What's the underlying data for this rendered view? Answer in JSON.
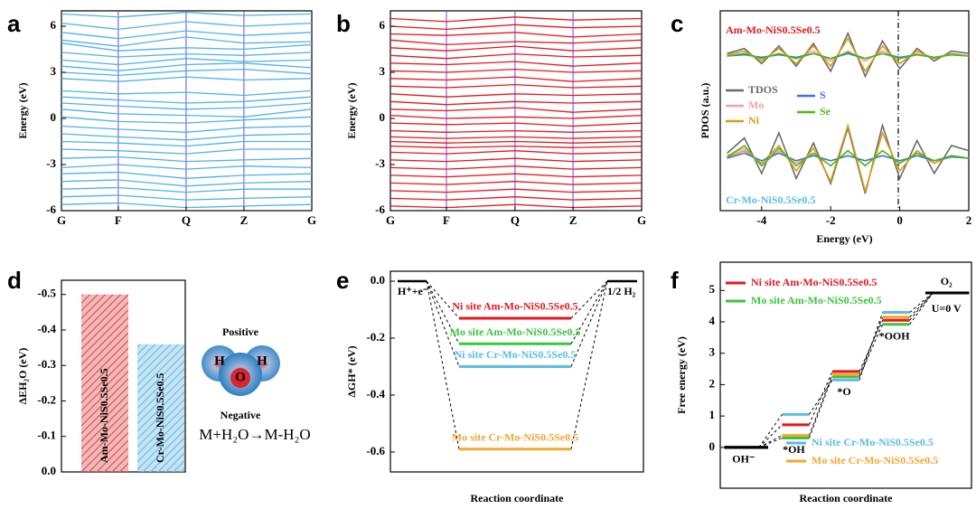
{
  "chart_data": [
    {
      "type": "line",
      "panel": "a",
      "ylabel": "Energy (eV)",
      "color": "#4db3e6",
      "x": [
        0,
        0.227,
        0.498,
        0.729,
        1
      ],
      "xlim": [
        0,
        1
      ],
      "xticks": [
        {
          "value": 0,
          "label": "G"
        },
        {
          "value": 0.227,
          "label": "F"
        },
        {
          "value": 0.498,
          "label": "Q"
        },
        {
          "value": 0.729,
          "label": "Z"
        },
        {
          "value": 1,
          "label": "G"
        }
      ],
      "ylim": [
        -6,
        7
      ],
      "yticks": [
        -6,
        -3,
        0,
        3,
        6
      ],
      "series": [
        {
          "values": [
            6.8,
            6.6,
            6.9,
            6.7,
            6.8
          ]
        },
        {
          "values": [
            6.2,
            5.8,
            6.3,
            6.0,
            6.2
          ]
        },
        {
          "values": [
            5.6,
            5.2,
            5.7,
            5.4,
            5.6
          ]
        },
        {
          "values": [
            5.1,
            4.7,
            5.3,
            4.9,
            5.0
          ]
        },
        {
          "values": [
            4.9,
            4.4,
            4.6,
            4.5,
            4.8
          ]
        },
        {
          "values": [
            4.3,
            4.0,
            4.2,
            4.1,
            4.3
          ]
        },
        {
          "values": [
            3.8,
            3.5,
            3.9,
            3.7,
            3.8
          ]
        },
        {
          "values": [
            3.4,
            3.1,
            3.5,
            3.6,
            3.3
          ]
        },
        {
          "values": [
            3.0,
            2.8,
            3.1,
            3.2,
            2.9
          ]
        },
        {
          "values": [
            2.6,
            2.4,
            2.7,
            2.5,
            2.6
          ]
        },
        {
          "values": [
            1.8,
            1.6,
            1.7,
            1.5,
            1.8
          ]
        },
        {
          "values": [
            1.4,
            1.2,
            1.0,
            1.1,
            1.4
          ]
        },
        {
          "values": [
            1.0,
            0.8,
            0.6,
            0.7,
            1.0
          ]
        },
        {
          "values": [
            0.6,
            0.3,
            0.2,
            0.1,
            0.6
          ]
        },
        {
          "values": [
            0.1,
            -0.2,
            -0.3,
            -0.1,
            0.1
          ]
        },
        {
          "values": [
            -0.5,
            -0.7,
            -0.9,
            -0.6,
            -0.5
          ]
        },
        {
          "values": [
            -1.0,
            -1.2,
            -1.4,
            -1.1,
            -1.0
          ]
        },
        {
          "values": [
            -1.5,
            -1.6,
            -1.8,
            -1.5,
            -1.5
          ]
        },
        {
          "values": [
            -2.0,
            -2.1,
            -2.3,
            -2.0,
            -2.0
          ]
        },
        {
          "values": [
            -2.6,
            -2.5,
            -2.8,
            -2.7,
            -2.6
          ]
        },
        {
          "values": [
            -3.2,
            -3.0,
            -3.3,
            -3.1,
            -3.2
          ]
        },
        {
          "values": [
            -3.6,
            -3.5,
            -3.9,
            -3.7,
            -3.6
          ]
        },
        {
          "values": [
            -4.1,
            -4.0,
            -4.4,
            -4.2,
            -4.1
          ]
        },
        {
          "values": [
            -4.6,
            -4.5,
            -4.8,
            -4.6,
            -4.6
          ]
        },
        {
          "values": [
            -5.1,
            -5.0,
            -5.3,
            -5.2,
            -5.1
          ]
        },
        {
          "values": [
            -5.6,
            -5.5,
            -5.8,
            -5.7,
            -5.6
          ]
        }
      ]
    },
    {
      "type": "line",
      "panel": "b",
      "ylabel": "Energy (eV)",
      "color": "#e0191f",
      "x": [
        0,
        0.223,
        0.496,
        0.727,
        1
      ],
      "xlim": [
        0,
        1
      ],
      "xticks": [
        {
          "value": 0,
          "label": "G"
        },
        {
          "value": 0.223,
          "label": "F"
        },
        {
          "value": 0.496,
          "label": "Q"
        },
        {
          "value": 0.727,
          "label": "Z"
        },
        {
          "value": 1,
          "label": "G"
        }
      ],
      "ylim": [
        -6,
        7
      ],
      "yticks": [
        -6,
        -3,
        0,
        3,
        6
      ],
      "series": [
        {
          "values": [
            6.5,
            6.3,
            6.6,
            6.4,
            6.5
          ]
        },
        {
          "values": [
            6.0,
            5.8,
            6.1,
            5.9,
            6.0
          ]
        },
        {
          "values": [
            5.5,
            5.4,
            5.6,
            5.3,
            5.5
          ]
        },
        {
          "values": [
            5.1,
            4.8,
            5.0,
            4.9,
            5.1
          ]
        },
        {
          "values": [
            4.6,
            4.4,
            4.7,
            4.4,
            4.6
          ]
        },
        {
          "values": [
            4.1,
            3.9,
            4.2,
            4.0,
            4.1
          ]
        },
        {
          "values": [
            3.6,
            3.5,
            3.7,
            3.4,
            3.6
          ]
        },
        {
          "values": [
            3.1,
            3.0,
            3.2,
            3.0,
            3.1
          ]
        },
        {
          "values": [
            2.6,
            2.5,
            2.7,
            2.4,
            2.6
          ]
        },
        {
          "values": [
            2.1,
            2.0,
            2.2,
            2.0,
            2.1
          ]
        },
        {
          "values": [
            1.6,
            1.4,
            1.6,
            1.5,
            1.6
          ]
        },
        {
          "values": [
            1.1,
            0.9,
            1.1,
            1.0,
            1.1
          ]
        },
        {
          "values": [
            0.6,
            0.5,
            0.7,
            0.4,
            0.6
          ]
        },
        {
          "values": [
            0.2,
            0.0,
            0.1,
            0.0,
            0.2
          ]
        },
        {
          "values": [
            -0.3,
            -0.4,
            -0.3,
            -0.5,
            -0.3
          ]
        },
        {
          "values": [
            -0.8,
            -0.9,
            -0.8,
            -0.9,
            -0.8
          ]
        },
        {
          "values": [
            -1.2,
            -1.3,
            -1.2,
            -1.3,
            -1.2
          ]
        },
        {
          "values": [
            -1.5,
            -1.6,
            -1.5,
            -1.6,
            -1.5
          ]
        },
        {
          "values": [
            -1.8,
            -1.9,
            -1.8,
            -1.9,
            -1.8
          ]
        },
        {
          "values": [
            -2.2,
            -2.3,
            -2.1,
            -2.3,
            -2.2
          ]
        },
        {
          "values": [
            -2.7,
            -2.8,
            -2.6,
            -2.8,
            -2.7
          ]
        },
        {
          "values": [
            -3.2,
            -3.3,
            -3.1,
            -3.3,
            -3.2
          ]
        },
        {
          "values": [
            -3.7,
            -3.8,
            -3.6,
            -3.8,
            -3.7
          ]
        },
        {
          "values": [
            -4.2,
            -4.3,
            -4.1,
            -4.3,
            -4.2
          ]
        },
        {
          "values": [
            -4.7,
            -4.8,
            -4.6,
            -4.8,
            -4.7
          ]
        },
        {
          "values": [
            -5.2,
            -5.3,
            -5.1,
            -5.3,
            -5.2
          ]
        },
        {
          "values": [
            -5.7,
            -5.8,
            -5.6,
            -5.8,
            -5.7
          ]
        }
      ]
    },
    {
      "type": "density",
      "panel": "c",
      "xlabel": "Energy (eV)",
      "ylabel": "PDOS (a.u.)",
      "x": [
        -5,
        -4.5,
        -4,
        -3.5,
        -3,
        -2.5,
        -2,
        -1.5,
        -1,
        -0.5,
        0,
        0.5,
        1,
        1.5,
        2
      ],
      "xlim": [
        -5.2,
        2
      ],
      "xticks": [
        -4,
        -2,
        0,
        2
      ],
      "ylim": [
        -1.5,
        1.5
      ],
      "legend": [
        {
          "name": "TDOS",
          "color": "#6b6b6b"
        },
        {
          "name": "Mo",
          "color": "#f4a0a0"
        },
        {
          "name": "Ni",
          "color": "#d4a017"
        },
        {
          "name": "S",
          "color": "#4a6fd8"
        },
        {
          "name": "Se",
          "color": "#4cbb17"
        }
      ],
      "subplots": [
        {
          "label": "Am-Mo-NiS0.5Se0.5",
          "color": "#e0191f",
          "series": [
            {
              "values": [
                0.1,
                0.3,
                -0.3,
                0.4,
                -0.4,
                0.5,
                -0.6,
                0.9,
                -0.8,
                0.6,
                -0.5,
                0.3,
                -0.2,
                0.2,
                0.1
              ]
            },
            {
              "values": [
                0,
                0.1,
                -0.1,
                0.1,
                -0.1,
                0.2,
                -0.2,
                0.2,
                -0.2,
                0.2,
                -0.1,
                0.1,
                -0.1,
                0.1,
                0
              ]
            },
            {
              "values": [
                0.05,
                0.2,
                -0.2,
                0.3,
                -0.3,
                0.4,
                -0.4,
                0.7,
                -0.6,
                0.4,
                -0.3,
                0.2,
                -0.1,
                0.1,
                0
              ]
            },
            {
              "values": [
                0,
                0.05,
                -0.05,
                0.05,
                -0.05,
                0.1,
                -0.1,
                0.1,
                -0.1,
                0.1,
                -0.05,
                0.05,
                -0.05,
                0.05,
                0
              ]
            },
            {
              "values": [
                0,
                0.1,
                -0.1,
                0.1,
                -0.1,
                0.1,
                -0.1,
                0.15,
                -0.1,
                0.1,
                -0.1,
                0.05,
                -0.05,
                0.05,
                0
              ]
            }
          ]
        },
        {
          "label": "Cr-Mo-NiS0.5Se0.5",
          "color": "#5bbce4",
          "series": [
            {
              "values": [
                0.2,
                0.8,
                -0.6,
                1.0,
                -0.8,
                0.6,
                -1.0,
                1.2,
                -1.4,
                1.3,
                -0.8,
                0.7,
                -0.6,
                0.5,
                0.3
              ]
            },
            {
              "values": [
                0.1,
                0.4,
                -0.3,
                0.3,
                -0.2,
                0.2,
                -0.3,
                0.3,
                -0.3,
                0.3,
                -0.2,
                0.2,
                -0.2,
                0.1,
                0
              ]
            },
            {
              "values": [
                0.05,
                0.3,
                -0.2,
                0.5,
                -0.5,
                0.4,
                -0.9,
                1.3,
                -1.3,
                1.0,
                -0.5,
                0.3,
                -0.2,
                0.1,
                0
              ]
            },
            {
              "values": [
                0,
                0.2,
                -0.1,
                0.2,
                -0.1,
                0.1,
                -0.1,
                0.1,
                -0.1,
                0.1,
                -0.1,
                0.1,
                -0.1,
                0.05,
                0
              ]
            },
            {
              "values": [
                0.05,
                0.5,
                -0.3,
                0.4,
                -0.3,
                0.2,
                -0.3,
                0.3,
                -0.3,
                0.3,
                -0.2,
                0.2,
                -0.1,
                0.1,
                0
              ]
            }
          ]
        }
      ]
    },
    {
      "type": "bar",
      "panel": "d",
      "ylabel": "ΔEH₂O (eV)",
      "categories": [
        "Am-Mo-NiS0.5Se0.5",
        "Cr-Mo-NiS0.5Se0.5"
      ],
      "values": [
        -0.5,
        -0.36
      ],
      "colors": [
        "#e06666",
        "#7ec3e6"
      ],
      "ylim": [
        0,
        -0.54
      ],
      "yticks": [
        {
          "value": 0,
          "label": "0.0"
        },
        -0.1,
        -0.2,
        -0.3,
        -0.4,
        -0.5
      ],
      "annotations": {
        "positive": "Positive",
        "negative": "Negative",
        "h1": "H",
        "o": "O",
        "h2": "H",
        "reaction": "M+H₂O→M-H₂O"
      }
    },
    {
      "type": "energy-level",
      "panel": "e",
      "ylabel": "ΔGH* (eV)",
      "xlabel": "Reaction coordinate",
      "start": {
        "label": "H⁺+e⁻",
        "value": 0
      },
      "end": {
        "label": "1/2 H₂",
        "value": 0
      },
      "ylim": [
        -0.67,
        0.035
      ],
      "yticks": [
        {
          "value": 0,
          "label": "0.0"
        },
        -0.2,
        -0.4,
        -0.6
      ],
      "series": [
        {
          "name": "Ni site Am-Mo-NiS0.5Se0.5",
          "color": "#e0191f",
          "value": -0.13
        },
        {
          "name": "Mo site Am-Mo-NiS0.5Se0.5",
          "color": "#3cc43c",
          "value": -0.22
        },
        {
          "name": "Ni site Cr-Mo-NiS0.5Se0.5",
          "color": "#5bbce4",
          "value": -0.3
        },
        {
          "name": "Mo site Cr-Mo-NiS0.5Se0.5",
          "color": "#f0a830",
          "value": -0.59
        }
      ]
    },
    {
      "type": "free-energy",
      "panel": "f",
      "ylabel": "Free energy (eV)",
      "xlabel": "Reaction coordinate",
      "categories": [
        "OH⁻",
        "*OH",
        "*O",
        "*OOH",
        "O₂"
      ],
      "annotation": "U=0 V",
      "ylim": [
        -1.3,
        5.9
      ],
      "yticks": [
        0,
        1,
        2,
        3,
        4,
        5
      ],
      "series": [
        {
          "name": "Ni site Am-Mo-NiS0.5Se0.5",
          "color": "#e0191f",
          "values": [
            0,
            0.72,
            2.42,
            4.05,
            4.92
          ]
        },
        {
          "name": "Mo site Am-Mo-NiS0.5Se0.5",
          "color": "#3cc43c",
          "values": [
            0,
            0.3,
            2.25,
            3.92,
            4.92
          ]
        },
        {
          "name": "Ni site Cr-Mo-NiS0.5Se0.5",
          "color": "#5bbce4",
          "values": [
            0,
            1.05,
            2.15,
            4.3,
            4.92
          ]
        },
        {
          "name": "Mo site Cr-Mo-NiS0.5Se0.5",
          "color": "#f0a830",
          "values": [
            0,
            0.38,
            2.32,
            4.15,
            4.92
          ]
        }
      ]
    }
  ]
}
